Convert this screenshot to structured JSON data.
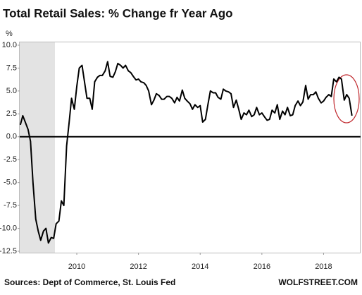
{
  "chart_data": {
    "type": "line",
    "title": "Total Retail Sales: % Change fr Year Ago",
    "y_label": "%",
    "source": "Sources: Dept of Commerce, St. Louis Fed",
    "watermark": "WOLFSTREET.COM",
    "color": "#000000",
    "grid": false,
    "xlim": [
      2008.15,
      2019.2
    ],
    "xticks": [
      2010,
      2012,
      2014,
      2016,
      2018
    ],
    "ylim": [
      -12.5,
      10
    ],
    "yticks": [
      {
        "value": 10,
        "label": "10.0"
      },
      7.5,
      {
        "value": 5,
        "label": "5.0"
      },
      2.5,
      {
        "value": 0,
        "label": "0.0"
      },
      -2.5,
      {
        "value": -5,
        "label": "-5.0"
      },
      -7.5,
      {
        "value": -10,
        "label": "-10.0"
      },
      -12.5
    ],
    "x": [
      2008.17,
      2008.25,
      2008.33,
      2008.42,
      2008.5,
      2008.58,
      2008.67,
      2008.75,
      2008.83,
      2008.92,
      2009,
      2009.08,
      2009.17,
      2009.25,
      2009.33,
      2009.42,
      2009.5,
      2009.58,
      2009.67,
      2009.75,
      2009.83,
      2009.92,
      2010,
      2010.08,
      2010.17,
      2010.25,
      2010.33,
      2010.42,
      2010.5,
      2010.58,
      2010.67,
      2010.75,
      2010.83,
      2010.92,
      2011,
      2011.08,
      2011.17,
      2011.25,
      2011.33,
      2011.42,
      2011.5,
      2011.58,
      2011.67,
      2011.75,
      2011.83,
      2011.92,
      2012,
      2012.08,
      2012.17,
      2012.25,
      2012.33,
      2012.42,
      2012.5,
      2012.58,
      2012.67,
      2012.75,
      2012.83,
      2012.92,
      2013,
      2013.08,
      2013.17,
      2013.25,
      2013.33,
      2013.42,
      2013.5,
      2013.58,
      2013.67,
      2013.75,
      2013.83,
      2013.92,
      2014,
      2014.08,
      2014.17,
      2014.25,
      2014.33,
      2014.42,
      2014.5,
      2014.58,
      2014.67,
      2014.75,
      2014.83,
      2014.92,
      2015,
      2015.08,
      2015.17,
      2015.25,
      2015.33,
      2015.42,
      2015.5,
      2015.58,
      2015.67,
      2015.75,
      2015.83,
      2015.92,
      2016,
      2016.08,
      2016.17,
      2016.25,
      2016.33,
      2016.42,
      2016.5,
      2016.58,
      2016.67,
      2016.75,
      2016.83,
      2016.92,
      2017,
      2017.08,
      2017.17,
      2017.25,
      2017.33,
      2017.42,
      2017.5,
      2017.58,
      2017.67,
      2017.75,
      2017.83,
      2017.92,
      2018,
      2018.08,
      2018.17,
      2018.25,
      2018.33,
      2018.42,
      2018.5,
      2018.58,
      2018.67,
      2018.75,
      2018.83,
      2018.92
    ],
    "values": [
      1.3,
      2.3,
      1.6,
      0.8,
      -0.5,
      -5.0,
      -9.0,
      -10.3,
      -11.3,
      -10.3,
      -10.0,
      -11.6,
      -11.0,
      -11.1,
      -9.5,
      -9.2,
      -7.0,
      -7.5,
      -1.0,
      1.5,
      4.2,
      3.0,
      5.5,
      7.5,
      7.8,
      6.0,
      4.2,
      4.2,
      3.0,
      6.0,
      6.5,
      6.7,
      6.7,
      7.2,
      8.2,
      6.6,
      6.5,
      7.1,
      8.0,
      7.8,
      7.5,
      7.8,
      7.2,
      7.0,
      6.6,
      6.2,
      6.3,
      6.0,
      5.9,
      5.6,
      5.0,
      3.5,
      4.0,
      4.7,
      4.5,
      4.1,
      4.1,
      4.4,
      4.4,
      4.2,
      3.7,
      4.3,
      3.9,
      5.1,
      4.2,
      3.9,
      3.6,
      3.0,
      3.5,
      3.2,
      3.4,
      1.6,
      1.9,
      3.5,
      5.0,
      4.8,
      4.8,
      4.3,
      4.1,
      5.2,
      5.0,
      4.9,
      4.7,
      3.2,
      4.0,
      3.0,
      1.9,
      2.6,
      2.4,
      2.9,
      2.2,
      2.4,
      3.2,
      2.4,
      2.6,
      2.2,
      1.8,
      1.9,
      2.9,
      2.6,
      3.5,
      1.9,
      2.8,
      2.4,
      3.2,
      2.3,
      2.4,
      3.4,
      3.9,
      3.4,
      3.8,
      5.6,
      4.1,
      4.6,
      4.6,
      4.9,
      4.2,
      3.7,
      3.9,
      4.3,
      4.6,
      4.4,
      6.3,
      6.0,
      6.5,
      6.3,
      4.0,
      4.6,
      4.2,
      2.3
    ]
  }
}
